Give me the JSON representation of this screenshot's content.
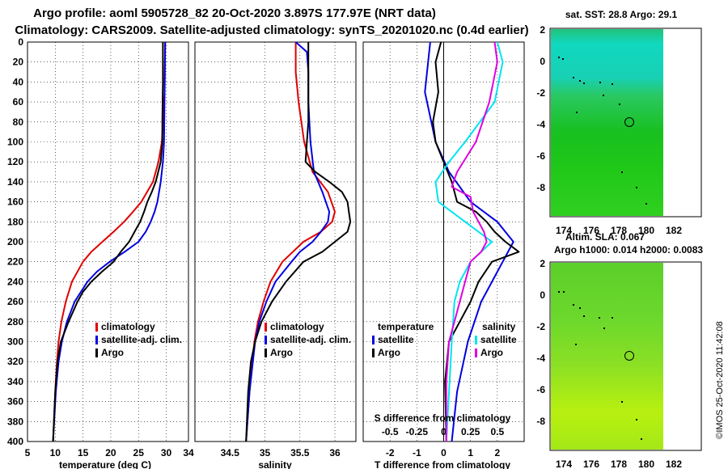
{
  "titles": {
    "line1": "Argo profile: aoml 5905728_82 20-Oct-2020 3.897S 177.97E (NRT data)",
    "line2": "Climatology: CARS2009. Satellite-adjusted climatology: synTS_20201020.nc (0.4d earlier)"
  },
  "watermark": "©IMOS 25-Oct-2020 11:42:08",
  "colors": {
    "climatology": "#e00000",
    "satellite": "#0000e0",
    "argo": "#000000",
    "cyan": "#00e5f0",
    "magenta": "#e000e0"
  },
  "chart_data": [
    {
      "type": "line",
      "name": "temperature",
      "xlabel": "temperature (deg C)",
      "ylabel": "",
      "xlim": [
        5,
        34
      ],
      "ylim": [
        400,
        0
      ],
      "xticks": [
        5,
        10,
        15,
        20,
        25,
        30
      ],
      "yticks": [
        0,
        20,
        40,
        60,
        80,
        100,
        120,
        140,
        160,
        180,
        200,
        220,
        240,
        260,
        280,
        300,
        320,
        340,
        360,
        380,
        400
      ],
      "legend": [
        "climatology",
        "satellite-adj. clim.",
        "Argo"
      ],
      "series": [
        {
          "name": "climatology",
          "depth": [
            0,
            50,
            100,
            120,
            140,
            160,
            170,
            180,
            190,
            200,
            210,
            220,
            240,
            260,
            280,
            300,
            320,
            350,
            400
          ],
          "values": [
            29.8,
            29.7,
            29.2,
            28.6,
            27.6,
            25.5,
            24.0,
            22.4,
            20.5,
            18.5,
            16.5,
            15.0,
            13.0,
            11.9,
            11.1,
            10.6,
            10.3,
            10.0,
            9.6
          ]
        },
        {
          "name": "satellite-adj. clim.",
          "depth": [
            0,
            50,
            100,
            120,
            140,
            160,
            170,
            180,
            190,
            200,
            210,
            220,
            230,
            240,
            260,
            280,
            300,
            320,
            350,
            400
          ],
          "values": [
            29.8,
            29.7,
            29.6,
            29.4,
            29.0,
            28.4,
            27.9,
            27.2,
            26.3,
            25.0,
            22.5,
            19.8,
            17.5,
            15.8,
            13.5,
            12.1,
            11.2,
            10.6,
            10.1,
            9.6
          ]
        },
        {
          "name": "Argo",
          "depth": [
            0,
            40,
            80,
            100,
            120,
            140,
            150,
            160,
            170,
            180,
            190,
            200,
            210,
            220,
            230,
            240,
            250,
            260,
            280,
            300,
            320,
            350,
            400
          ],
          "values": [
            29.4,
            29.4,
            29.3,
            29.3,
            29.0,
            28.1,
            27.4,
            26.6,
            26.0,
            25.3,
            24.3,
            23.3,
            21.8,
            20.5,
            18.4,
            16.5,
            15.0,
            14.0,
            12.4,
            11.0,
            10.4,
            10.0,
            9.6
          ]
        }
      ]
    },
    {
      "type": "line",
      "name": "salinity",
      "xlabel": "salinity",
      "xlim": [
        34,
        36.3
      ],
      "ylim": [
        400,
        0
      ],
      "xticks": [
        34.5,
        35,
        35.5,
        36
      ],
      "legend": [
        "climatology",
        "satellite-adj. clim.",
        "Argo"
      ],
      "series": [
        {
          "name": "climatology",
          "depth": [
            0,
            30,
            60,
            100,
            130,
            150,
            170,
            180,
            190,
            200,
            220,
            240,
            260,
            280,
            300,
            350,
            400
          ],
          "values": [
            35.44,
            35.44,
            35.48,
            35.56,
            35.68,
            35.9,
            36.0,
            35.96,
            35.8,
            35.55,
            35.25,
            35.08,
            34.98,
            34.9,
            34.85,
            34.78,
            34.73
          ]
        },
        {
          "name": "satellite-adj. clim.",
          "depth": [
            0,
            10,
            30,
            60,
            100,
            130,
            150,
            170,
            180,
            190,
            200,
            210,
            220,
            240,
            260,
            280,
            300,
            350,
            400
          ],
          "values": [
            35.44,
            35.6,
            35.62,
            35.62,
            35.65,
            35.7,
            35.82,
            35.92,
            35.9,
            35.8,
            35.68,
            35.5,
            35.38,
            35.15,
            35.02,
            34.92,
            34.86,
            34.78,
            34.73
          ]
        },
        {
          "name": "Argo",
          "depth": [
            0,
            40,
            80,
            100,
            120,
            130,
            140,
            150,
            160,
            170,
            180,
            190,
            200,
            210,
            220,
            240,
            260,
            280,
            300,
            320,
            350,
            400
          ],
          "values": [
            35.62,
            35.62,
            35.62,
            35.6,
            35.58,
            35.72,
            35.92,
            36.1,
            36.18,
            36.2,
            36.22,
            36.18,
            36.0,
            35.82,
            35.55,
            35.3,
            35.1,
            34.95,
            34.86,
            34.8,
            34.76,
            34.73
          ]
        }
      ]
    },
    {
      "type": "line",
      "name": "difference",
      "xlabel": "T difference from climatology",
      "xlabel2": "S difference from climatology",
      "xlim": [
        -3,
        3
      ],
      "ylim": [
        400,
        0
      ],
      "xticks": [
        -2,
        -1,
        0,
        1,
        2
      ],
      "xticks_s": [
        -0.5,
        -0.25,
        0,
        0.25,
        0.5
      ],
      "legend_left": {
        "header": "temperature",
        "items": [
          "satellite",
          "Argo"
        ]
      },
      "legend_right": {
        "header": "salinity",
        "items": [
          "satellite",
          "Argo"
        ]
      },
      "series": [
        {
          "name": "T satellite",
          "depth": [
            0,
            50,
            100,
            130,
            160,
            180,
            200,
            210,
            220,
            260,
            300,
            350,
            400
          ],
          "values": [
            -0.5,
            -0.7,
            -0.3,
            0.2,
            1.0,
            2.0,
            2.6,
            2.4,
            2.2,
            1.4,
            0.9,
            0.5,
            0.3
          ]
        },
        {
          "name": "T Argo",
          "depth": [
            0,
            20,
            50,
            80,
            100,
            120,
            140,
            160,
            170,
            180,
            190,
            200,
            210,
            220,
            240,
            260,
            280,
            300,
            340,
            400
          ],
          "values": [
            -0.1,
            -0.3,
            -0.2,
            -0.4,
            -0.3,
            0.0,
            0.3,
            0.5,
            1.2,
            1.6,
            1.9,
            2.3,
            2.8,
            1.8,
            1.3,
            1.0,
            0.6,
            0.2,
            0.05,
            0.1
          ]
        },
        {
          "name": "S satellite",
          "depth": [
            0,
            20,
            60,
            100,
            120,
            140,
            160,
            180,
            200,
            220,
            240,
            260,
            300,
            350,
            400
          ],
          "values": [
            2.0,
            2.2,
            1.9,
            0.8,
            0.2,
            -0.3,
            -0.2,
            0.8,
            1.8,
            1.0,
            0.6,
            0.4,
            0.3,
            0.2,
            0.1
          ]
        },
        {
          "name": "S Argo",
          "depth": [
            0,
            20,
            60,
            100,
            130,
            145,
            155,
            170,
            180,
            190,
            200,
            210,
            220,
            240,
            260,
            280,
            300,
            340,
            400
          ],
          "values": [
            1.9,
            2.0,
            1.7,
            1.2,
            0.5,
            0.3,
            1.0,
            1.1,
            1.3,
            1.5,
            1.6,
            1.4,
            1.0,
            0.8,
            0.6,
            0.4,
            0.2,
            0.1,
            0.1
          ]
        }
      ]
    },
    {
      "type": "heatmap",
      "name": "sst-map",
      "title": "sat. SST: 28.8  Argo: 29.1",
      "xticks": [
        174,
        176,
        178,
        180,
        182
      ],
      "yticks": [
        2,
        0,
        -2,
        -4,
        -6,
        -8
      ],
      "marker": {
        "lon": 177.97,
        "lat": -3.897
      }
    },
    {
      "type": "heatmap",
      "name": "sla-map",
      "title": "Altim. SLA: 0.067",
      "subtitle": "Argo h1000: 0.014  h2000: 0.0083",
      "xticks": [
        174,
        176,
        178,
        180,
        182
      ],
      "yticks": [
        2,
        0,
        -2,
        -4,
        -6,
        -8
      ],
      "marker": {
        "lon": 177.97,
        "lat": -3.897
      }
    }
  ]
}
